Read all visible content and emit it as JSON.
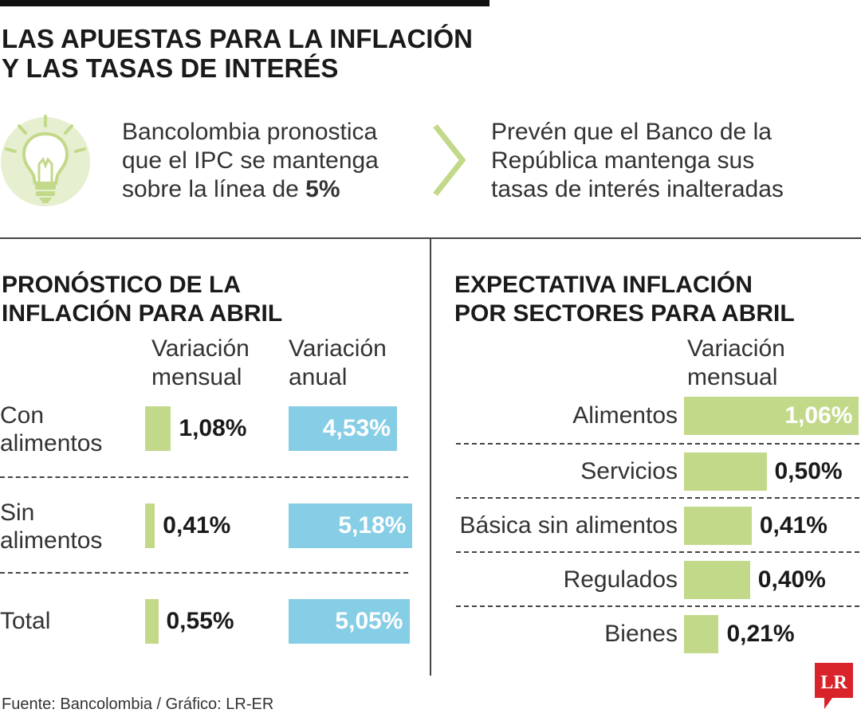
{
  "title": {
    "line1": "LAS APUESTAS PARA LA INFLACIÓN",
    "line2": "Y LAS TASAS DE INTERÉS"
  },
  "intro": {
    "left": {
      "line1": "Bancolombia pronostica",
      "line2": "que el IPC se mantenga",
      "line3_prefix": "sobre la línea de ",
      "line3_bold": "5%"
    },
    "right": {
      "line1": "Prevén que el Banco de la",
      "line2": "República mantenga sus",
      "line3": "tasas de interés inalteradas"
    }
  },
  "icons": {
    "bulb": "lightbulb-icon",
    "chevron": "chevron-right-icon",
    "logo": "lr-logo"
  },
  "colors": {
    "green": "#c3d98a",
    "blue": "#86cde6",
    "bulb_bg": "#e6efcf",
    "bulb_line": "#c3d98a",
    "logo_red": "#d8232a"
  },
  "chart_data": [
    {
      "type": "bar",
      "title": "PRONÓSTICO DE LA INFLACIÓN PARA ABRIL",
      "title_lines": [
        "PRONÓSTICO DE LA",
        "INFLACIÓN PARA ABRIL"
      ],
      "columns": [
        {
          "label_lines": [
            "Variación",
            "mensual"
          ]
        },
        {
          "label_lines": [
            "Variación",
            "anual"
          ]
        }
      ],
      "categories": [
        {
          "label_lines": [
            "Con",
            "alimentos"
          ]
        },
        {
          "label_lines": [
            "Sin",
            "alimentos"
          ]
        },
        {
          "label_lines": [
            "Total"
          ]
        }
      ],
      "series": [
        {
          "values": [
            1.08,
            0.41,
            0.55
          ],
          "labels": [
            "1,08%",
            "0,41%",
            "0,55%"
          ]
        },
        {
          "values": [
            4.53,
            5.18,
            5.05
          ],
          "labels": [
            "4,53%",
            "5,18%",
            "5,05%"
          ]
        }
      ]
    },
    {
      "type": "bar",
      "title": "EXPECTATIVA INFLACIÓN POR SECTORES PARA ABRIL",
      "title_lines": [
        "EXPECTATIVA INFLACIÓN",
        "POR SECTORES PARA ABRIL"
      ],
      "column_lines": [
        "Variación",
        "mensual"
      ],
      "categories": [
        "Alimentos",
        "Servicios",
        "Básica sin alimentos",
        "Regulados",
        "Bienes"
      ],
      "values": [
        1.06,
        0.5,
        0.41,
        0.4,
        0.21
      ],
      "labels": [
        "1,06%",
        "0,50%",
        "0,41%",
        "0,40%",
        "0,21%"
      ]
    }
  ],
  "footer": "Fuente: Bancolombia / Gráfico: LR-ER",
  "logo_text": "LR"
}
